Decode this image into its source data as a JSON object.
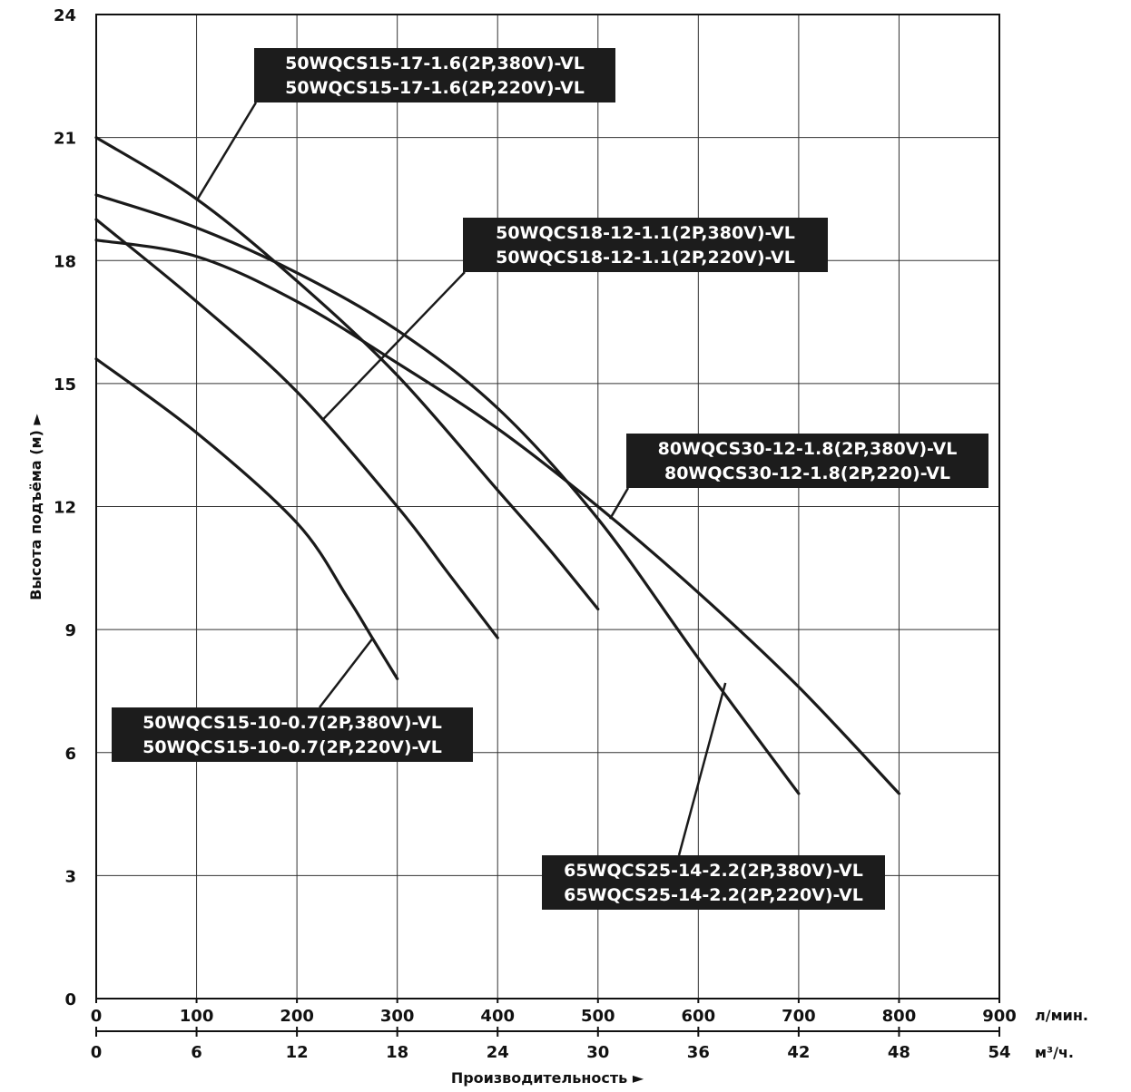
{
  "chart_data": {
    "type": "line",
    "xlabel": "Производительность ►",
    "ylabel": "Высота подъёма (м) ►",
    "x_unit_primary": "л/мин.",
    "x_unit_secondary": "м³/ч.",
    "xlim": [
      0,
      900
    ],
    "ylim": [
      0,
      24
    ],
    "grid": true,
    "x_ticks_primary": [
      "0",
      "100",
      "200",
      "300",
      "400",
      "500",
      "600",
      "700",
      "800",
      "900"
    ],
    "x_ticks_secondary": [
      "0",
      "6",
      "12",
      "18",
      "24",
      "30",
      "36",
      "42",
      "48",
      "54"
    ],
    "y_ticks": [
      "0",
      "3",
      "6",
      "9",
      "12",
      "15",
      "18",
      "21",
      "24"
    ],
    "series": [
      {
        "name": "50WQCS15-10-0.7",
        "x": [
          0,
          100,
          200,
          250,
          275,
          300
        ],
        "y": [
          15.6,
          13.8,
          11.6,
          9.8,
          8.8,
          7.8
        ]
      },
      {
        "name": "50WQCS18-12-1.1",
        "x": [
          0,
          100,
          200,
          300,
          350,
          400
        ],
        "y": [
          19.0,
          17.0,
          14.8,
          12.0,
          10.4,
          8.8
        ]
      },
      {
        "name": "50WQCS15-17-1.6",
        "x": [
          0,
          100,
          200,
          300,
          400,
          450,
          500
        ],
        "y": [
          21.0,
          19.5,
          17.5,
          15.2,
          12.4,
          11.0,
          9.5
        ]
      },
      {
        "name": "80WQCS30-12-1.8",
        "x": [
          0,
          100,
          200,
          300,
          400,
          500,
          600,
          700,
          800
        ],
        "y": [
          18.5,
          18.1,
          17.0,
          15.5,
          13.9,
          12.0,
          9.9,
          7.6,
          5.0
        ]
      },
      {
        "name": "65WQCS25-14-2.2",
        "x": [
          0,
          100,
          200,
          300,
          400,
          500,
          600,
          700
        ],
        "y": [
          19.6,
          18.8,
          17.7,
          16.3,
          14.4,
          11.7,
          8.3,
          5.0
        ]
      }
    ],
    "annotations": [
      {
        "id": "ann-50wqcs15-17",
        "lines": [
          "50WQCS15-17-1.6(2P,380V)-VL",
          "50WQCS15-17-1.6(2P,220V)-VL"
        ],
        "target": [
          101,
          19.5
        ]
      },
      {
        "id": "ann-50wqcs18-12",
        "lines": [
          "50WQCS18-12-1.1(2P,380V)-VL",
          "50WQCS18-12-1.1(2P,220V)-VL"
        ],
        "target": [
          225,
          14.1
        ]
      },
      {
        "id": "ann-80wqcs30-12",
        "lines": [
          "80WQCS30-12-1.8(2P,380V)-VL",
          "80WQCS30-12-1.8(2P,220)-VL"
        ],
        "target": [
          512,
          11.7
        ]
      },
      {
        "id": "ann-50wqcs15-10",
        "lines": [
          "50WQCS15-10-0.7(2P,380V)-VL",
          "50WQCS15-10-0.7(2P,220V)-VL"
        ],
        "target": [
          276,
          8.8
        ]
      },
      {
        "id": "ann-65wqcs25-14",
        "lines": [
          "65WQCS25-14-2.2(2P,380V)-VL",
          "65WQCS25-14-2.2(2P,220V)-VL"
        ],
        "target": [
          627,
          7.7
        ]
      }
    ],
    "colors": {
      "curve": "#1a1a1a",
      "grid": "#333333",
      "label_bg": "#1c1c1c",
      "label_text": "#ffffff"
    }
  }
}
